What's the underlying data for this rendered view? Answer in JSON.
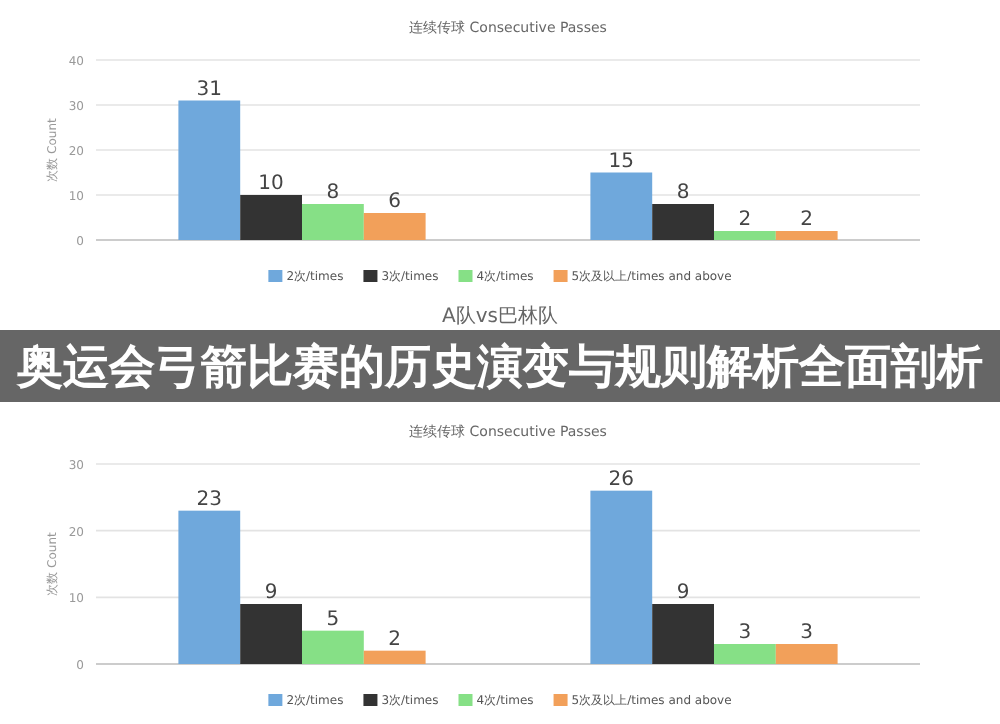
{
  "chart_data": [
    {
      "type": "bar",
      "title": "连续传球 Consecutive Passes",
      "ylabel": "次数 Count",
      "categories": [
        null,
        null
      ],
      "ylim": [
        0,
        40
      ],
      "yticks": [
        0,
        10,
        20,
        30,
        40
      ],
      "grid": "y",
      "legend": "bottom",
      "data_labels": true,
      "series": [
        {
          "name": "2次/times",
          "color": "#6fa8dc",
          "values": [
            31,
            15
          ]
        },
        {
          "name": "3次/times",
          "color": "#333333",
          "values": [
            10,
            8
          ]
        },
        {
          "name": "4次/times",
          "color": "#86e086",
          "values": [
            8,
            2
          ]
        },
        {
          "name": "5次及以上/times and above",
          "color": "#f2a05a",
          "values": [
            6,
            2
          ]
        }
      ]
    },
    {
      "type": "bar",
      "title": "连续传球 Consecutive Passes",
      "ylabel": "次数 Count",
      "categories": [
        null,
        null
      ],
      "ylim": [
        0,
        30
      ],
      "yticks": [
        0,
        10,
        20,
        30
      ],
      "grid": "y",
      "legend": "bottom",
      "data_labels": true,
      "annotations": [
        "A队vs巴林队",
        "奥运会弓箭比赛的历史演变与规则解析全面剖析"
      ],
      "series": [
        {
          "name": "2次/times",
          "color": "#6fa8dc",
          "values": [
            23,
            26
          ]
        },
        {
          "name": "3次/times",
          "color": "#333333",
          "values": [
            9,
            9
          ]
        },
        {
          "name": "4次/times",
          "color": "#86e086",
          "values": [
            5,
            3
          ]
        },
        {
          "name": "5次及以上/times and above",
          "color": "#f2a05a",
          "values": [
            2,
            3
          ]
        }
      ]
    }
  ]
}
